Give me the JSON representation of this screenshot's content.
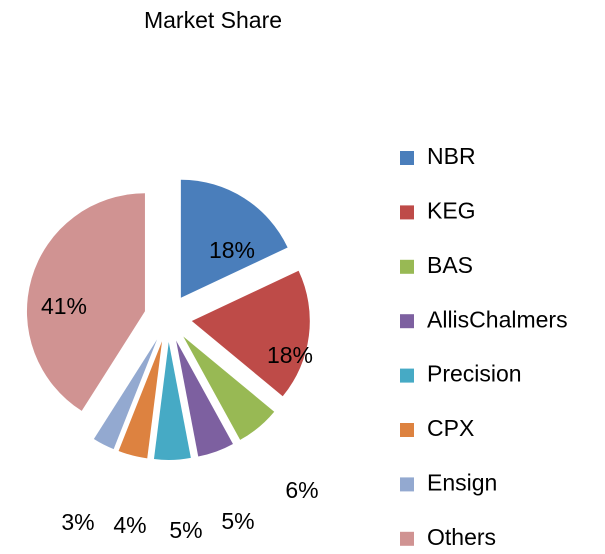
{
  "chart_data": {
    "type": "pie",
    "title": "Market Share",
    "categories": [
      "NBR",
      "KEG",
      "BAS",
      "AllisChalmers",
      "Precision",
      "CPX",
      "Ensign",
      "Others"
    ],
    "values": [
      18,
      18,
      6,
      5,
      5,
      4,
      3,
      41
    ],
    "value_labels": [
      "18%",
      "18%",
      "6%",
      "5%",
      "5%",
      "4%",
      "3%",
      "41%"
    ],
    "colors": [
      "#4a7ebb",
      "#be4b48",
      "#98b954",
      "#7d60a0",
      "#46aac5",
      "#dd8240",
      "#93a9d0",
      "#d09392"
    ],
    "legend": "right"
  }
}
